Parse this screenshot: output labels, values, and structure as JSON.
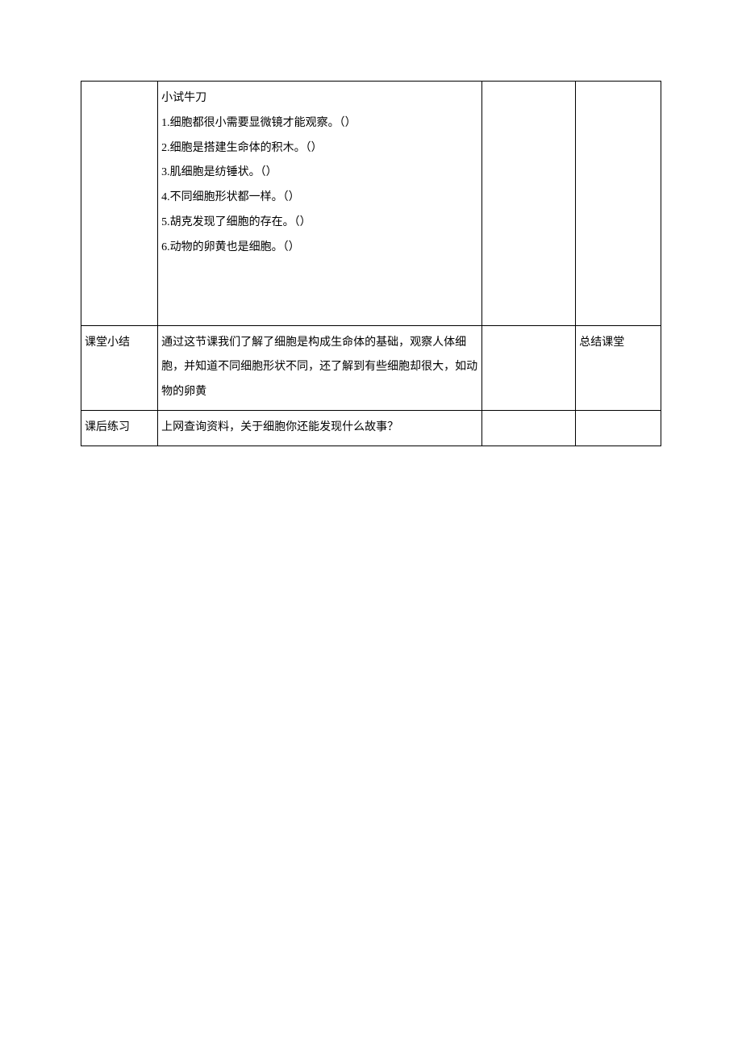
{
  "rows": [
    {
      "col1": "",
      "col2_lines": [
        "小试牛刀",
        "1.细胞都很小需要显微镜才能观察。（）",
        "2.细胞是搭建生命体的积木。（）",
        "3.肌细胞是纺锤状。（）",
        "4.不同细胞形状都一样。（）",
        "5.胡克发现了细胞的存在。（）",
        "6.动物的卵黄也是细胞。（）"
      ],
      "col3": "",
      "col4": ""
    },
    {
      "col1": "课堂小结",
      "col2": "通过这节课我们了解了细胞是构成生命体的基础，观察人体细胞，并知道不同细胞形状不同，还了解到有些细胞却很大，如动物的卵黄",
      "col3": "",
      "col4": "总结课堂"
    },
    {
      "col1": "课后练习",
      "col2": "上网查询资料，关于细胞你还能发现什么故事？",
      "col3": "",
      "col4": ""
    }
  ],
  "colors": {
    "border": "#000000",
    "background": "#ffffff",
    "text": "#000000"
  },
  "font_size": 14
}
